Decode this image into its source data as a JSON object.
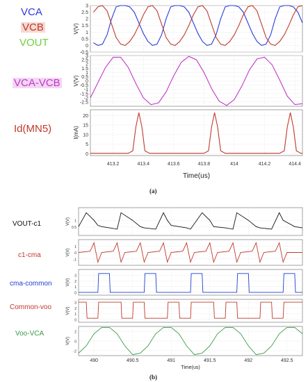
{
  "figure_a": {
    "caption": "(a)",
    "legend_labels": [
      {
        "text": "VCA",
        "color": "#2b3bd9"
      },
      {
        "text": "VCB",
        "color": "#c0392b"
      },
      {
        "text": "VOUT",
        "color": "#6fcf3e"
      },
      {
        "text": "VCA-VCB",
        "color": "#c238c8"
      },
      {
        "text": "Id(MN5)",
        "color": "#c0392b"
      }
    ],
    "x_label": "Time(us)",
    "x_ticks": [
      "413.2",
      "413.4",
      "413.6",
      "413.8",
      "414",
      "414.2",
      "414.4"
    ],
    "y_label_v": "V(V)",
    "y_label_i": "I(mA)"
  },
  "figure_b": {
    "caption": "(b)",
    "panel_labels": [
      {
        "text": "VOUT-c1",
        "color": "#111111"
      },
      {
        "text": "c1-cma",
        "color": "#c0392b"
      },
      {
        "text": "cma-common",
        "color": "#1f3fd0"
      },
      {
        "text": "Common-voo",
        "color": "#c0392b"
      },
      {
        "text": "Voo-VCA",
        "color": "#3a9a4a"
      }
    ],
    "x_label": "Time(us)",
    "x_ticks": [
      "490",
      "490.5",
      "491",
      "491.5",
      "492",
      "492.5"
    ],
    "y_label": "V(V)"
  },
  "chart_data": [
    {
      "type": "line",
      "title": "",
      "xlabel": "Time(us)",
      "ylabel": "V(V)",
      "xlim": [
        413.05,
        414.45
      ],
      "ylim": [
        -0.5,
        3.0
      ],
      "y_ticks": [
        3,
        2.5,
        2,
        1.5,
        1,
        0.5,
        0,
        -0.5
      ],
      "series": [
        {
          "name": "VCA",
          "color": "#2b3bd9",
          "x": [
            413.07,
            413.1,
            413.13,
            413.16,
            413.19,
            413.22,
            413.25,
            413.28,
            413.31,
            413.34,
            413.37,
            413.4,
            413.43,
            413.46,
            413.49,
            413.52,
            413.55,
            413.58,
            413.61,
            413.64,
            413.67,
            413.7,
            413.73,
            413.76,
            413.79,
            413.82,
            413.85,
            413.88,
            413.91,
            413.94,
            413.97,
            414.0,
            414.03,
            414.06,
            414.09,
            414.12,
            414.15,
            414.18,
            414.21,
            414.24,
            414.27,
            414.3,
            414.33,
            414.36,
            414.39,
            414.42,
            414.45
          ],
          "y": [
            0.2,
            0.0,
            0.1,
            0.8,
            2.0,
            2.9,
            3.0,
            3.0,
            2.9,
            2.5,
            1.7,
            0.9,
            0.3,
            0.0,
            0.1,
            0.8,
            2.0,
            2.9,
            3.0,
            3.0,
            2.9,
            2.5,
            1.7,
            0.9,
            0.3,
            0.0,
            0.1,
            0.8,
            2.0,
            2.9,
            3.0,
            3.0,
            2.9,
            2.5,
            1.7,
            0.9,
            0.3,
            0.0,
            0.1,
            0.8,
            2.0,
            2.9,
            3.0,
            3.0,
            2.9,
            2.5,
            1.7
          ]
        },
        {
          "name": "VCB",
          "color": "#c0392b",
          "x": [
            413.07,
            413.1,
            413.13,
            413.16,
            413.19,
            413.22,
            413.25,
            413.28,
            413.31,
            413.34,
            413.37,
            413.4,
            413.43,
            413.46,
            413.49,
            413.52,
            413.55,
            413.58,
            413.61,
            413.64,
            413.67,
            413.7,
            413.73,
            413.76,
            413.79,
            413.82,
            413.85,
            413.88,
            413.91,
            413.94,
            413.97,
            414.0,
            414.03,
            414.06,
            414.09,
            414.12,
            414.15,
            414.18,
            414.21,
            414.24,
            414.27,
            414.3,
            414.33,
            414.36,
            414.39,
            414.42,
            414.45
          ],
          "y": [
            2.5,
            2.9,
            3.0,
            2.6,
            1.6,
            0.6,
            0.1,
            0.0,
            0.3,
            0.8,
            1.5,
            2.3,
            2.9,
            3.0,
            2.6,
            1.6,
            0.6,
            0.1,
            0.0,
            0.3,
            0.8,
            1.5,
            2.3,
            2.9,
            3.0,
            2.6,
            1.6,
            0.6,
            0.1,
            0.0,
            0.3,
            0.8,
            1.5,
            2.3,
            2.9,
            3.0,
            2.6,
            1.6,
            0.6,
            0.1,
            0.0,
            0.3,
            0.8,
            1.5,
            2.3,
            2.9,
            3.0
          ]
        }
      ]
    },
    {
      "type": "line",
      "title": "",
      "xlabel": "Time(us)",
      "ylabel": "V(V)",
      "xlim": [
        413.05,
        414.45
      ],
      "ylim": [
        -3.0,
        3.0
      ],
      "y_ticks": [
        3,
        2.5,
        2,
        1.5,
        1,
        0.5,
        0,
        -0.5,
        -1,
        -1.5,
        -2,
        -2.5
      ],
      "series": [
        {
          "name": "VCA-VCB",
          "color": "#c238c8",
          "x": [
            413.05,
            413.1,
            413.15,
            413.2,
            413.25,
            413.3,
            413.35,
            413.4,
            413.45,
            413.5,
            413.55,
            413.6,
            413.65,
            413.7,
            413.75,
            413.8,
            413.85,
            413.9,
            413.95,
            414.0,
            414.05,
            414.1,
            414.15,
            414.2,
            414.25,
            414.3,
            414.35,
            414.4,
            414.45
          ],
          "y": [
            -2.0,
            -0.2,
            1.6,
            2.8,
            2.8,
            1.6,
            -0.3,
            -2.0,
            -2.8,
            -2.6,
            -1.3,
            0.6,
            2.2,
            2.9,
            2.5,
            1.0,
            -0.9,
            -2.4,
            -2.9,
            -2.2,
            -0.6,
            1.3,
            2.6,
            2.8,
            1.9,
            0.1,
            -1.8,
            -2.8,
            -2.7
          ]
        }
      ]
    },
    {
      "type": "line",
      "title": "",
      "xlabel": "Time(us)",
      "ylabel": "I(mA)",
      "xlim": [
        413.05,
        414.45
      ],
      "ylim": [
        -1,
        23
      ],
      "y_ticks": [
        20,
        15,
        10,
        5,
        0
      ],
      "series": [
        {
          "name": "Id(MN5)",
          "color": "#c0392b",
          "x": [
            413.05,
            413.3,
            413.33,
            413.35,
            413.37,
            413.39,
            413.41,
            413.44,
            413.8,
            413.83,
            413.85,
            413.87,
            413.89,
            413.91,
            413.94,
            414.3,
            414.33,
            414.35,
            414.37,
            414.39,
            414.41,
            414.44,
            414.45
          ],
          "y": [
            0.2,
            0.2,
            1.5,
            14,
            21.5,
            14,
            1.5,
            0.2,
            0.2,
            1.5,
            14,
            21.5,
            14,
            1.5,
            0.2,
            0.2,
            1.5,
            14,
            21.5,
            14,
            1.5,
            0.2,
            0.2
          ]
        }
      ]
    },
    {
      "type": "line",
      "title": "",
      "xlabel": "Time(us)",
      "ylabel": "V(V)",
      "xlim": [
        489.8,
        492.7
      ],
      "series_note": "",
      "series": [
        {
          "name": "VOUT-c1",
          "color": "#111111",
          "x": [
            489.8,
            489.9,
            490.0,
            490.05,
            490.1,
            490.2,
            490.3,
            490.35,
            490.5,
            490.6,
            490.65,
            490.8,
            490.9,
            490.95,
            491.0,
            491.1,
            491.2,
            491.25,
            491.4,
            491.5,
            491.55,
            491.7,
            491.8,
            491.85,
            492.0,
            492.1,
            492.15,
            492.3,
            492.4,
            492.45,
            492.6,
            492.7
          ],
          "y": [
            0.5,
            1.6,
            1.0,
            0.6,
            0.5,
            0.4,
            0.3,
            1.6,
            1.0,
            0.5,
            0.4,
            0.3,
            1.6,
            1.0,
            0.6,
            0.5,
            0.4,
            0.3,
            1.6,
            1.0,
            0.5,
            0.4,
            0.3,
            1.6,
            1.0,
            0.5,
            0.4,
            0.3,
            1.6,
            1.0,
            0.5,
            0.4
          ]
        },
        {
          "name": "c1-cma",
          "color": "#c0392b",
          "x": [
            489.8,
            489.95,
            490.0,
            490.05,
            490.1,
            490.25,
            490.3,
            490.35,
            490.4,
            490.55,
            490.6,
            490.65,
            490.7,
            490.85,
            490.9,
            490.95,
            491.0,
            491.15,
            491.2,
            491.25,
            491.3,
            491.45,
            491.5,
            491.55,
            491.6,
            491.75,
            491.8,
            491.85,
            491.9,
            492.05,
            492.1,
            492.15,
            492.2,
            492.35,
            492.4,
            492.45,
            492.5,
            492.7
          ],
          "y": [
            0,
            0.2,
            1.5,
            -1.5,
            0,
            0.2,
            1.5,
            -1.5,
            0,
            0.2,
            1.5,
            -1.5,
            0,
            0.2,
            1.5,
            -1.5,
            0,
            0.2,
            1.5,
            -1.5,
            0,
            0.2,
            1.5,
            -1.5,
            0,
            0.2,
            1.5,
            -1.5,
            0,
            0.2,
            1.5,
            -1.5,
            0,
            0.2,
            1.5,
            -1.5,
            0,
            0
          ]
        },
        {
          "name": "cma-common",
          "color": "#1f3fd0",
          "x": [
            489.8,
            490.05,
            490.06,
            490.2,
            490.21,
            490.65,
            490.66,
            490.8,
            490.81,
            491.25,
            491.26,
            491.4,
            491.41,
            491.85,
            491.86,
            492.0,
            492.01,
            492.45,
            492.46,
            492.6,
            492.61,
            492.7
          ],
          "y": [
            0,
            0,
            3.3,
            3.3,
            0,
            0,
            3.3,
            3.3,
            0,
            0,
            3.3,
            3.3,
            0,
            0,
            3.3,
            3.3,
            0,
            0,
            3.3,
            3.3,
            0,
            0
          ]
        },
        {
          "name": "Common-voo",
          "color": "#c0392b",
          "x": [
            489.8,
            489.9,
            489.91,
            490.05,
            490.06,
            490.35,
            490.36,
            490.5,
            490.51,
            490.65,
            490.66,
            490.95,
            490.96,
            491.1,
            491.11,
            491.25,
            491.26,
            491.55,
            491.56,
            491.7,
            491.71,
            491.85,
            491.86,
            492.15,
            492.16,
            492.3,
            492.31,
            492.45,
            492.46,
            492.7
          ],
          "y": [
            3.0,
            3.0,
            0.2,
            0.2,
            3.0,
            3.0,
            0.2,
            0.2,
            3.0,
            3.0,
            0.2,
            0.2,
            3.0,
            3.0,
            0.2,
            0.2,
            3.0,
            3.0,
            0.2,
            0.2,
            3.0,
            3.0,
            0.2,
            0.2,
            3.0,
            3.0,
            0.2,
            0.2,
            3.0,
            3.0
          ]
        },
        {
          "name": "Voo-VCA",
          "color": "#3a9a4a",
          "x": [
            489.8,
            489.9,
            490.0,
            490.1,
            490.2,
            490.3,
            490.4,
            490.5,
            490.6,
            490.7,
            490.8,
            490.9,
            491.0,
            491.1,
            491.2,
            491.3,
            491.4,
            491.5,
            491.6,
            491.7,
            491.8,
            491.9,
            492.0,
            492.1,
            492.2,
            492.3,
            492.4,
            492.5,
            492.6,
            492.7
          ],
          "y": [
            -2.5,
            -1.0,
            1.5,
            2.8,
            2.8,
            1.5,
            -1.0,
            -2.8,
            -2.5,
            -1.0,
            1.5,
            2.8,
            2.8,
            1.5,
            -1.0,
            -2.8,
            -2.5,
            -1.0,
            1.5,
            2.8,
            2.8,
            1.5,
            -1.0,
            -2.8,
            -2.5,
            -1.0,
            1.5,
            2.8,
            2.8,
            1.5
          ]
        }
      ]
    }
  ]
}
